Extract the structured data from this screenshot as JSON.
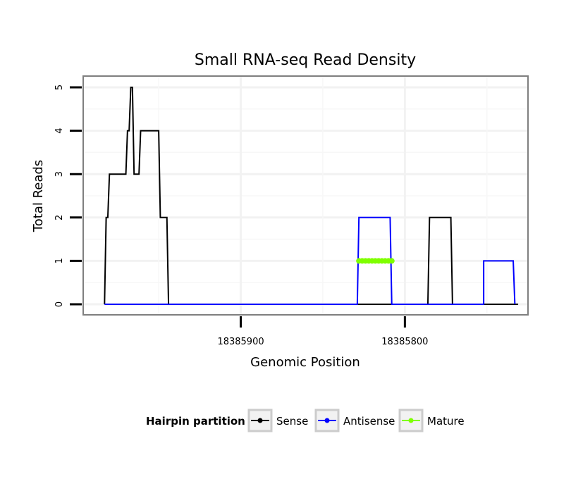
{
  "chart_data": {
    "type": "line",
    "title": "Small RNA-seq Read Density",
    "xlabel": "Genomic Position",
    "ylabel": "Total Reads",
    "x_reversed": true,
    "xlim": [
      18385996,
      18385725
    ],
    "ylim": [
      0,
      5
    ],
    "x_ticks": [
      18385900,
      18385800
    ],
    "x_tick_labels": [
      "18385900",
      "18385800"
    ],
    "y_ticks": [
      0,
      1,
      2,
      3,
      4,
      5
    ],
    "y_tick_labels": [
      "0",
      "1",
      "2",
      "3",
      "4",
      "5"
    ],
    "grid": true,
    "legend": {
      "title": "Hairpin partition",
      "position": "bottom",
      "entries": [
        "Sense",
        "Antisense",
        "Mature"
      ]
    },
    "series": [
      {
        "name": "Sense",
        "color": "#000000",
        "x": [
          18385983,
          18385982,
          18385981,
          18385980,
          18385970,
          18385969,
          18385968,
          18385967,
          18385966,
          18385965,
          18385962,
          18385961,
          18385954,
          18385950,
          18385949,
          18385945,
          18385944,
          18385940,
          18385800,
          18385799,
          18385786,
          18385785,
          18385772,
          18385771,
          18385752,
          18385751,
          18385731
        ],
        "y": [
          0,
          2,
          2,
          3,
          3,
          4,
          4,
          5,
          5,
          3,
          3,
          4,
          4,
          4,
          2,
          2,
          0,
          0,
          0,
          0,
          0,
          2,
          2,
          0,
          0,
          0,
          0
        ]
      },
      {
        "name": "Antisense",
        "color": "#0000ff",
        "x": [
          18385983,
          18385829,
          18385828,
          18385809,
          18385808,
          18385771,
          18385770,
          18385753,
          18385752,
          18385752,
          18385734,
          18385733
        ],
        "y": [
          0,
          0,
          2,
          2,
          0,
          0,
          0,
          0,
          0,
          1,
          1,
          0
        ]
      },
      {
        "name": "Mature",
        "color": "#7fff00",
        "x": [
          18385828,
          18385826,
          18385824,
          18385822,
          18385820,
          18385818,
          18385816,
          18385814,
          18385812,
          18385810,
          18385808
        ],
        "y": [
          1,
          1,
          1,
          1,
          1,
          1,
          1,
          1,
          1,
          1,
          1
        ]
      }
    ]
  }
}
